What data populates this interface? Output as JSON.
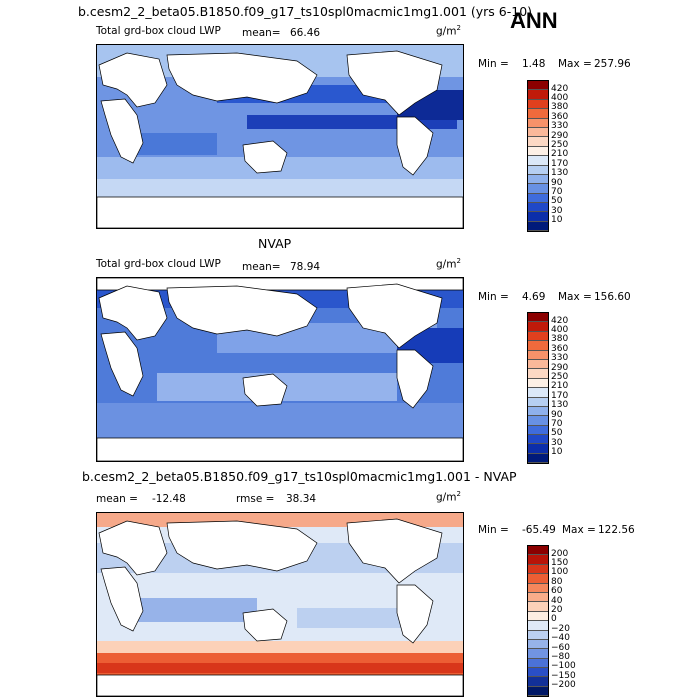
{
  "header": {
    "case_title": "b.cesm2_2_beta05.B1850.f09_g17_ts10spl0macmic1mg1.001 (yrs 6-10)",
    "season": "ANN"
  },
  "panels": [
    {
      "id": "model",
      "heading": "",
      "variable_label": "Total grd-box cloud LWP",
      "mean_label": "mean=",
      "mean_value": "66.46",
      "unit_base": "g/m",
      "unit_exp": "2",
      "min_label": "Min =",
      "min_value": "1.48",
      "max_label": "Max =",
      "max_value": "257.96",
      "colorbar_labels": [
        "420",
        "400",
        "380",
        "360",
        "330",
        "290",
        "250",
        "210",
        "170",
        "130",
        "90",
        "70",
        "50",
        "30",
        "10"
      ],
      "colorbar_colors": [
        "#8b0000",
        "#c01a0a",
        "#e0401e",
        "#f06a3c",
        "#f7926a",
        "#fab89a",
        "#fcd8c4",
        "#fdf0e6",
        "#dbe8f8",
        "#b6cff2",
        "#8fb1ec",
        "#6891e4",
        "#3f6cdc",
        "#2048c8",
        "#0c2eaa",
        "#001a7a"
      ]
    },
    {
      "id": "obs",
      "heading": "NVAP",
      "variable_label": "Total grd-box cloud LWP",
      "mean_label": "mean=",
      "mean_value": "78.94",
      "unit_base": "g/m",
      "unit_exp": "2",
      "min_label": "Min =",
      "min_value": "4.69",
      "max_label": "Max =",
      "max_value": "156.60",
      "colorbar_labels": [
        "420",
        "400",
        "380",
        "360",
        "330",
        "290",
        "250",
        "210",
        "170",
        "130",
        "90",
        "70",
        "50",
        "30",
        "10"
      ],
      "colorbar_colors": [
        "#8b0000",
        "#c01a0a",
        "#e0401e",
        "#f06a3c",
        "#f7926a",
        "#fab89a",
        "#fcd8c4",
        "#fdf0e6",
        "#dbe8f8",
        "#b6cff2",
        "#8fb1ec",
        "#6891e4",
        "#3f6cdc",
        "#2048c8",
        "#0c2eaa",
        "#001a7a"
      ]
    },
    {
      "id": "diff",
      "heading": "b.cesm2_2_beta05.B1850.f09_g17_ts10spl0macmic1mg1.001 - NVAP",
      "variable_label": "mean =",
      "mean_label": "",
      "mean_value": "-12.48",
      "rmse_label": "rmse =",
      "rmse_value": "38.34",
      "unit_base": "g/m",
      "unit_exp": "2",
      "min_label": "Min =",
      "min_value": "-65.49",
      "max_label": "Max =",
      "max_value": "122.56",
      "colorbar_labels": [
        "200",
        "150",
        "100",
        "80",
        "60",
        "40",
        "20",
        "0",
        "−20",
        "−40",
        "−60",
        "−80",
        "−100",
        "−150",
        "−200"
      ],
      "colorbar_colors": [
        "#8b0000",
        "#b81408",
        "#d8361a",
        "#ec5e34",
        "#f5875c",
        "#f9ad8a",
        "#fcd1b8",
        "#fdeee2",
        "#dfe9f7",
        "#bcd0f0",
        "#97b3e9",
        "#7194e2",
        "#4b72d8",
        "#2a4fc6",
        "#123098",
        "#001866"
      ]
    }
  ]
}
